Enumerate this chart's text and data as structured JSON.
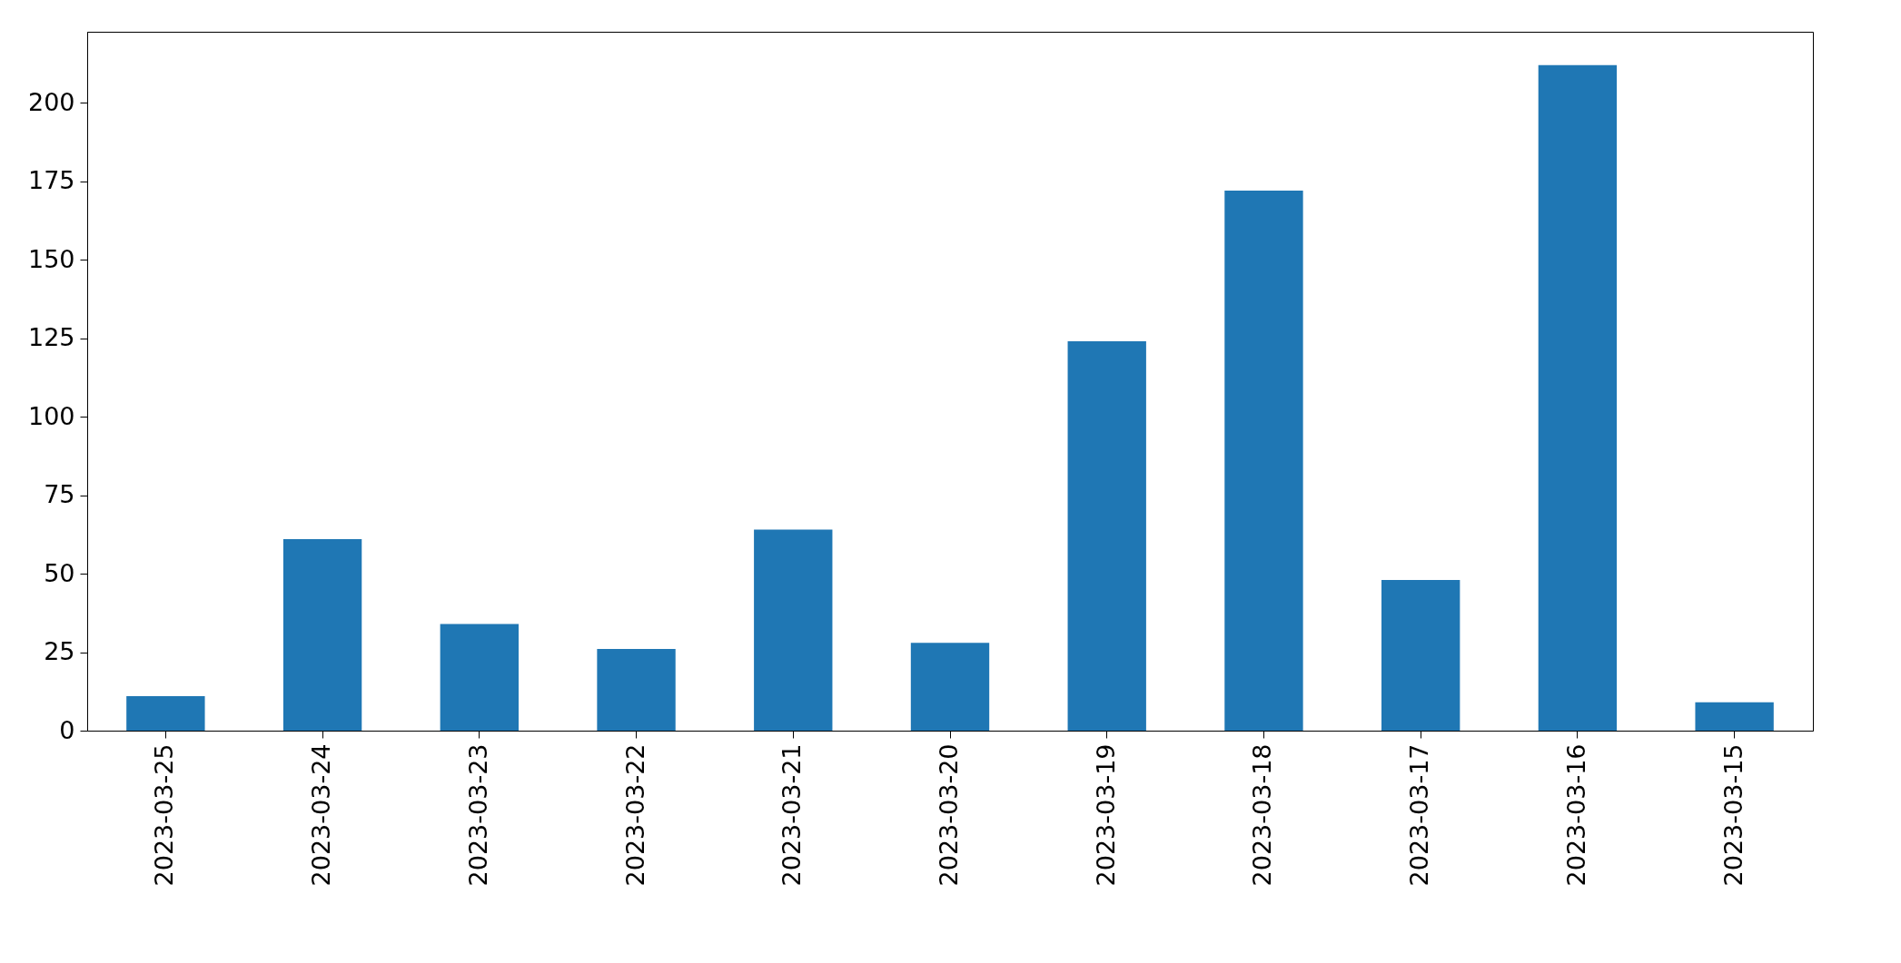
{
  "chart_data": {
    "type": "bar",
    "categories": [
      "2023-03-25",
      "2023-03-24",
      "2023-03-23",
      "2023-03-22",
      "2023-03-21",
      "2023-03-20",
      "2023-03-19",
      "2023-03-18",
      "2023-03-17",
      "2023-03-16",
      "2023-03-15"
    ],
    "values": [
      11,
      61,
      34,
      26,
      64,
      28,
      124,
      172,
      48,
      212,
      9
    ],
    "color": "#1f77b4",
    "ylim": [
      0,
      222.6
    ],
    "yticks": [
      0,
      25,
      50,
      75,
      100,
      125,
      150,
      175,
      200
    ],
    "grid": false
  }
}
